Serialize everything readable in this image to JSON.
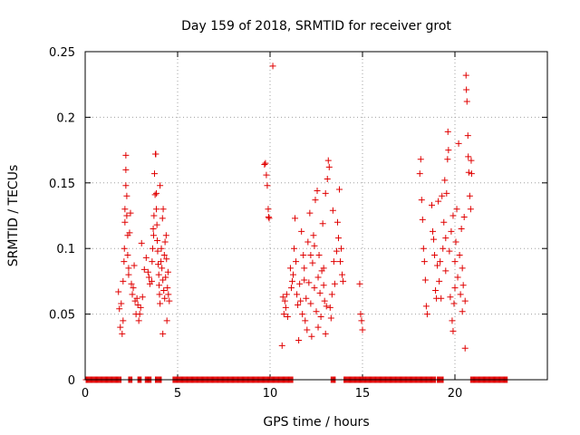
{
  "chart_data": {
    "type": "scatter",
    "title": "Day 159 of 2018, SRMTID for receiver grot",
    "xlabel": "GPS time / hours",
    "ylabel": "SRMTID / TECUs",
    "xlim": [
      0,
      25
    ],
    "ylim": [
      0,
      0.25
    ],
    "xticks": [
      0,
      5,
      10,
      15,
      20
    ],
    "xtick_labels": [
      "0",
      "5",
      "10",
      "15",
      "20"
    ],
    "yticks": [
      0,
      0.05,
      0.1,
      0.15,
      0.2,
      0.25
    ],
    "ytick_labels": [
      "0",
      "0.05",
      "0.1",
      "0.15",
      "0.2",
      "0.25"
    ],
    "grid": true,
    "marker": "+",
    "series": [
      {
        "name": "SRMTID",
        "color": "#e00000",
        "zero_segments": [
          [
            0.05,
            1.95
          ],
          [
            2.35,
            2.55
          ],
          [
            2.85,
            3.05
          ],
          [
            3.25,
            3.6
          ],
          [
            3.8,
            4.15
          ],
          [
            4.75,
            11.25
          ],
          [
            13.3,
            13.55
          ],
          [
            14.0,
            18.95
          ],
          [
            19.05,
            19.4
          ],
          [
            20.85,
            22.85
          ]
        ],
        "points": [
          [
            1.8,
            0.067
          ],
          [
            1.85,
            0.054
          ],
          [
            1.9,
            0.04
          ],
          [
            1.95,
            0.058
          ],
          [
            2.0,
            0.035
          ],
          [
            2.05,
            0.045
          ],
          [
            2.05,
            0.075
          ],
          [
            2.1,
            0.09
          ],
          [
            2.12,
            0.1
          ],
          [
            2.15,
            0.12
          ],
          [
            2.15,
            0.13
          ],
          [
            2.2,
            0.171
          ],
          [
            2.2,
            0.16
          ],
          [
            2.2,
            0.148
          ],
          [
            2.25,
            0.14
          ],
          [
            2.25,
            0.125
          ],
          [
            2.3,
            0.11
          ],
          [
            2.3,
            0.095
          ],
          [
            2.35,
            0.085
          ],
          [
            2.35,
            0.08
          ],
          [
            2.4,
            0.112
          ],
          [
            2.45,
            0.127
          ],
          [
            2.5,
            0.073
          ],
          [
            2.55,
            0.065
          ],
          [
            2.6,
            0.07
          ],
          [
            2.65,
            0.087
          ],
          [
            2.7,
            0.06
          ],
          [
            2.75,
            0.05
          ],
          [
            2.8,
            0.062
          ],
          [
            2.85,
            0.057
          ],
          [
            2.9,
            0.045
          ],
          [
            2.95,
            0.05
          ],
          [
            3.0,
            0.055
          ],
          [
            3.1,
            0.063
          ],
          [
            3.05,
            0.104
          ],
          [
            3.2,
            0.084
          ],
          [
            3.3,
            0.093
          ],
          [
            3.4,
            0.082
          ],
          [
            3.45,
            0.078
          ],
          [
            3.5,
            0.073
          ],
          [
            3.6,
            0.075
          ],
          [
            3.62,
            0.09
          ],
          [
            3.65,
            0.1
          ],
          [
            3.68,
            0.115
          ],
          [
            3.7,
            0.11
          ],
          [
            3.72,
            0.125
          ],
          [
            3.75,
            0.157
          ],
          [
            3.78,
            0.141
          ],
          [
            3.8,
            0.172
          ],
          [
            3.82,
            0.172
          ],
          [
            3.85,
            0.142
          ],
          [
            3.85,
            0.13
          ],
          [
            3.88,
            0.118
          ],
          [
            3.9,
            0.106
          ],
          [
            3.92,
            0.098
          ],
          [
            3.95,
            0.088
          ],
          [
            3.98,
            0.08
          ],
          [
            4.0,
            0.072
          ],
          [
            4.02,
            0.065
          ],
          [
            4.05,
            0.058
          ],
          [
            4.05,
            0.148
          ],
          [
            4.1,
            0.09
          ],
          [
            4.12,
            0.1
          ],
          [
            4.15,
            0.085
          ],
          [
            4.18,
            0.123
          ],
          [
            4.2,
            0.035
          ],
          [
            4.2,
            0.076
          ],
          [
            4.22,
            0.13
          ],
          [
            4.25,
            0.068
          ],
          [
            4.28,
            0.095
          ],
          [
            4.3,
            0.062
          ],
          [
            4.32,
            0.105
          ],
          [
            4.35,
            0.078
          ],
          [
            4.38,
            0.11
          ],
          [
            4.4,
            0.092
          ],
          [
            4.42,
            0.045
          ],
          [
            4.45,
            0.07
          ],
          [
            4.48,
            0.082
          ],
          [
            4.5,
            0.065
          ],
          [
            4.55,
            0.06
          ],
          [
            9.7,
            0.164
          ],
          [
            9.75,
            0.165
          ],
          [
            9.8,
            0.156
          ],
          [
            9.85,
            0.148
          ],
          [
            9.9,
            0.13
          ],
          [
            9.92,
            0.124
          ],
          [
            9.95,
            0.123
          ],
          [
            10.15,
            0.239
          ],
          [
            10.65,
            0.026
          ],
          [
            10.7,
            0.063
          ],
          [
            10.75,
            0.05
          ],
          [
            10.8,
            0.06
          ],
          [
            10.85,
            0.055
          ],
          [
            10.9,
            0.065
          ],
          [
            10.95,
            0.048
          ],
          [
            11.1,
            0.085
          ],
          [
            11.15,
            0.07
          ],
          [
            11.2,
            0.075
          ],
          [
            11.25,
            0.08
          ],
          [
            11.3,
            0.1
          ],
          [
            11.35,
            0.123
          ],
          [
            11.4,
            0.09
          ],
          [
            11.45,
            0.065
          ],
          [
            11.5,
            0.057
          ],
          [
            11.55,
            0.03
          ],
          [
            11.6,
            0.073
          ],
          [
            11.65,
            0.06
          ],
          [
            11.7,
            0.113
          ],
          [
            11.75,
            0.05
          ],
          [
            11.8,
            0.095
          ],
          [
            11.85,
            0.085
          ],
          [
            11.9,
            0.045
          ],
          [
            11.95,
            0.062
          ],
          [
            12.0,
            0.038
          ],
          [
            12.05,
            0.105
          ],
          [
            12.1,
            0.074
          ],
          [
            12.15,
            0.127
          ],
          [
            12.2,
            0.058
          ],
          [
            12.25,
            0.033
          ],
          [
            12.3,
            0.089
          ],
          [
            12.35,
            0.11
          ],
          [
            12.4,
            0.07
          ],
          [
            12.45,
            0.137
          ],
          [
            12.5,
            0.052
          ],
          [
            12.55,
            0.144
          ],
          [
            12.6,
            0.078
          ],
          [
            12.65,
            0.095
          ],
          [
            12.7,
            0.066
          ],
          [
            12.75,
            0.048
          ],
          [
            12.8,
            0.083
          ],
          [
            12.85,
            0.119
          ],
          [
            12.9,
            0.072
          ],
          [
            12.95,
            0.06
          ],
          [
            13.0,
            0.142
          ],
          [
            13.05,
            0.056
          ],
          [
            13.1,
            0.153
          ],
          [
            13.15,
            0.167
          ],
          [
            13.2,
            0.162
          ],
          [
            13.25,
            0.055
          ],
          [
            13.3,
            0.047
          ],
          [
            13.35,
            0.065
          ],
          [
            13.4,
            0.129
          ],
          [
            13.45,
            0.09
          ],
          [
            13.5,
            0.073
          ],
          [
            13.6,
            0.098
          ],
          [
            13.65,
            0.12
          ],
          [
            13.7,
            0.108
          ],
          [
            13.75,
            0.145
          ],
          [
            13.8,
            0.09
          ],
          [
            13.85,
            0.1
          ],
          [
            13.9,
            0.08
          ],
          [
            13.95,
            0.075
          ],
          [
            12.2,
            0.095
          ],
          [
            12.6,
            0.04
          ],
          [
            12.9,
            0.085
          ],
          [
            13.0,
            0.035
          ],
          [
            11.85,
            0.076
          ],
          [
            12.4,
            0.102
          ],
          [
            14.85,
            0.073
          ],
          [
            14.9,
            0.05
          ],
          [
            14.95,
            0.045
          ],
          [
            15.0,
            0.038
          ],
          [
            18.1,
            0.157
          ],
          [
            18.15,
            0.168
          ],
          [
            18.2,
            0.137
          ],
          [
            18.25,
            0.122
          ],
          [
            18.3,
            0.1
          ],
          [
            18.35,
            0.09
          ],
          [
            18.4,
            0.076
          ],
          [
            18.45,
            0.056
          ],
          [
            18.5,
            0.05
          ],
          [
            18.75,
            0.133
          ],
          [
            18.8,
            0.113
          ],
          [
            18.85,
            0.107
          ],
          [
            18.9,
            0.095
          ],
          [
            18.95,
            0.068
          ],
          [
            19.0,
            0.062
          ],
          [
            19.05,
            0.087
          ],
          [
            19.1,
            0.136
          ],
          [
            19.15,
            0.075
          ],
          [
            19.2,
            0.09
          ],
          [
            19.25,
            0.062
          ],
          [
            19.3,
            0.14
          ],
          [
            19.35,
            0.1
          ],
          [
            19.4,
            0.12
          ],
          [
            19.45,
            0.152
          ],
          [
            19.5,
            0.083
          ],
          [
            19.55,
            0.142
          ],
          [
            19.6,
            0.168
          ],
          [
            19.62,
            0.189
          ],
          [
            19.65,
            0.175
          ],
          [
            19.7,
            0.098
          ],
          [
            19.75,
            0.063
          ],
          [
            19.8,
            0.113
          ],
          [
            19.85,
            0.045
          ],
          [
            19.9,
            0.037
          ],
          [
            19.95,
            0.058
          ],
          [
            20.0,
            0.09
          ],
          [
            20.05,
            0.105
          ],
          [
            20.1,
            0.13
          ],
          [
            20.15,
            0.078
          ],
          [
            20.2,
            0.18
          ],
          [
            20.25,
            0.095
          ],
          [
            20.3,
            0.065
          ],
          [
            20.35,
            0.115
          ],
          [
            20.4,
            0.085
          ],
          [
            20.45,
            0.072
          ],
          [
            20.5,
            0.124
          ],
          [
            20.55,
            0.06
          ],
          [
            20.6,
            0.232
          ],
          [
            20.62,
            0.221
          ],
          [
            20.65,
            0.212
          ],
          [
            20.7,
            0.186
          ],
          [
            20.72,
            0.17
          ],
          [
            20.75,
            0.158
          ],
          [
            20.8,
            0.14
          ],
          [
            20.85,
            0.13
          ],
          [
            20.88,
            0.167
          ],
          [
            20.9,
            0.157
          ],
          [
            20.55,
            0.024
          ],
          [
            20.4,
            0.052
          ],
          [
            19.5,
            0.108
          ],
          [
            19.9,
            0.125
          ],
          [
            20.0,
            0.07
          ]
        ]
      }
    ]
  }
}
